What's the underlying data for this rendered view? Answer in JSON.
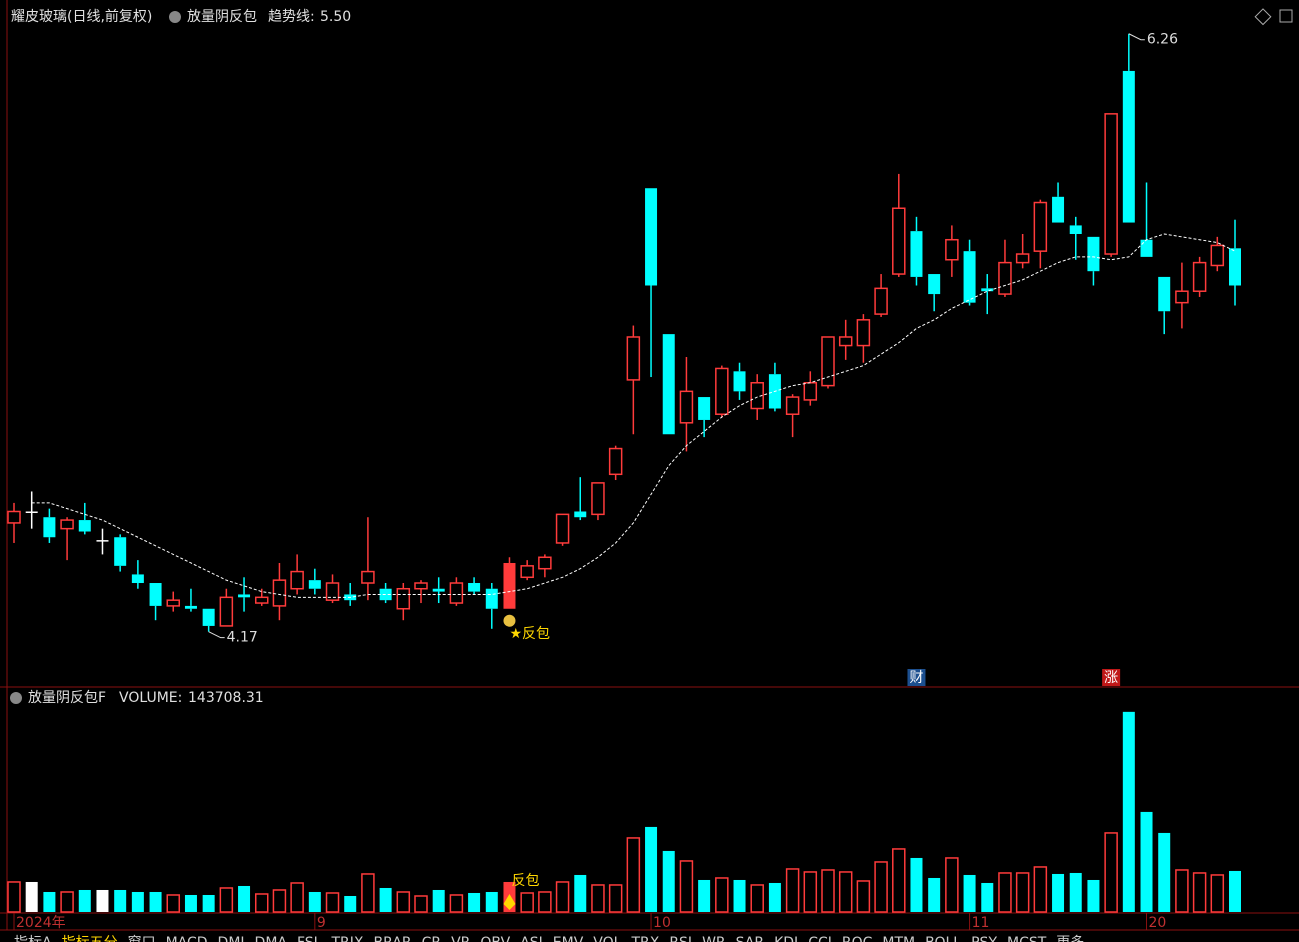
{
  "chart_data": {
    "type": "candlestick",
    "title": "耀皮玻璃(日线,前复权)",
    "indicator": "放量阴反包",
    "trend_label": "趋势线:",
    "trend_value_label": "5.50",
    "signal_label": "★反包",
    "signal_index": 28,
    "volume_title": "放量阴反包F",
    "volume_label": "VOLUME:",
    "volume_signal_label": "反包",
    "categories": [
      "2024年",
      null,
      null,
      null,
      null,
      null,
      null,
      null,
      null,
      null,
      null,
      null,
      null,
      null,
      null,
      null,
      null,
      "9",
      null,
      null,
      null,
      null,
      null,
      null,
      null,
      null,
      null,
      null,
      null,
      null,
      null,
      null,
      null,
      null,
      null,
      null,
      "10",
      null,
      null,
      null,
      null,
      null,
      null,
      null,
      null,
      null,
      null,
      null,
      null,
      null,
      null,
      null,
      null,
      null,
      "11",
      null,
      null,
      null,
      null,
      null,
      null,
      null,
      null,
      null,
      "20",
      null,
      null,
      null,
      null,
      null
    ],
    "open": [
      4.55,
      4.59,
      4.57,
      4.53,
      4.56,
      4.49,
      4.5,
      4.37,
      4.34,
      4.26,
      4.26,
      4.25,
      4.19,
      4.3,
      4.27,
      4.26,
      4.32,
      4.35,
      4.28,
      4.3,
      4.34,
      4.32,
      4.25,
      4.32,
      4.32,
      4.27,
      4.34,
      4.32,
      4.25,
      4.36,
      4.39,
      4.48,
      4.59,
      4.58,
      4.72,
      5.05,
      5.72,
      5.21,
      4.9,
      4.99,
      4.93,
      5.08,
      4.95,
      5.07,
      4.93,
      4.98,
      5.03,
      5.17,
      5.17,
      5.28,
      5.42,
      5.57,
      5.42,
      5.47,
      5.5,
      5.37,
      5.35,
      5.46,
      5.5,
      5.69,
      5.59,
      5.55,
      5.49,
      6.13,
      5.54,
      5.41,
      5.32,
      5.36,
      5.45,
      5.51
    ],
    "high": [
      4.62,
      4.66,
      4.6,
      4.57,
      4.62,
      4.53,
      4.51,
      4.42,
      4.34,
      4.31,
      4.32,
      4.25,
      4.32,
      4.36,
      4.32,
      4.41,
      4.44,
      4.39,
      4.37,
      4.34,
      4.57,
      4.34,
      4.34,
      4.35,
      4.36,
      4.36,
      4.36,
      4.34,
      4.43,
      4.42,
      4.44,
      4.58,
      4.71,
      4.69,
      4.82,
      5.24,
      5.72,
      5.21,
      5.13,
      4.99,
      5.1,
      5.11,
      5.07,
      5.11,
      5.0,
      5.08,
      5.2,
      5.26,
      5.28,
      5.42,
      5.77,
      5.62,
      5.42,
      5.59,
      5.54,
      5.42,
      5.54,
      5.56,
      5.68,
      5.74,
      5.62,
      5.55,
      5.98,
      6.26,
      5.74,
      5.41,
      5.46,
      5.48,
      5.55,
      5.61
    ],
    "low": [
      4.48,
      4.53,
      4.48,
      4.42,
      4.51,
      4.44,
      4.38,
      4.32,
      4.21,
      4.24,
      4.24,
      4.17,
      4.19,
      4.24,
      4.26,
      4.21,
      4.3,
      4.3,
      4.27,
      4.26,
      4.28,
      4.27,
      4.21,
      4.27,
      4.27,
      4.26,
      4.3,
      4.18,
      4.25,
      4.35,
      4.36,
      4.47,
      4.56,
      4.56,
      4.7,
      4.86,
      5.06,
      4.86,
      4.8,
      4.85,
      4.92,
      4.98,
      4.91,
      4.94,
      4.85,
      4.96,
      5.02,
      5.12,
      5.11,
      5.27,
      5.41,
      5.38,
      5.29,
      5.41,
      5.31,
      5.28,
      5.34,
      5.44,
      5.44,
      5.6,
      5.47,
      5.38,
      5.48,
      5.6,
      5.48,
      5.21,
      5.23,
      5.34,
      5.43,
      5.31
    ],
    "close": [
      4.59,
      4.59,
      4.5,
      4.56,
      4.52,
      4.49,
      4.4,
      4.34,
      4.26,
      4.28,
      4.25,
      4.19,
      4.29,
      4.29,
      4.29,
      4.35,
      4.38,
      4.32,
      4.34,
      4.28,
      4.38,
      4.28,
      4.32,
      4.34,
      4.31,
      4.34,
      4.31,
      4.25,
      4.41,
      4.4,
      4.43,
      4.58,
      4.57,
      4.69,
      4.81,
      5.2,
      5.38,
      4.86,
      5.01,
      4.91,
      5.09,
      5.01,
      5.04,
      4.95,
      4.99,
      5.04,
      5.2,
      5.2,
      5.26,
      5.37,
      5.65,
      5.41,
      5.35,
      5.54,
      5.32,
      5.36,
      5.46,
      5.49,
      5.67,
      5.6,
      5.56,
      5.43,
      5.98,
      5.6,
      5.48,
      5.29,
      5.36,
      5.46,
      5.52,
      5.38
    ],
    "trend": [
      null,
      4.62,
      4.62,
      4.6,
      4.58,
      4.56,
      4.53,
      4.5,
      4.47,
      4.44,
      4.41,
      4.38,
      4.35,
      4.33,
      4.31,
      4.3,
      4.29,
      4.29,
      4.29,
      4.29,
      4.3,
      4.3,
      4.3,
      4.3,
      4.3,
      4.3,
      4.3,
      4.3,
      4.31,
      4.32,
      4.34,
      4.36,
      4.39,
      4.43,
      4.48,
      4.55,
      4.65,
      4.75,
      4.82,
      4.87,
      4.92,
      4.96,
      4.99,
      5.01,
      5.03,
      5.04,
      5.06,
      5.08,
      5.1,
      5.14,
      5.18,
      5.23,
      5.26,
      5.3,
      5.33,
      5.36,
      5.38,
      5.4,
      5.43,
      5.46,
      5.48,
      5.48,
      5.47,
      5.48,
      5.54,
      5.56,
      5.55,
      5.54,
      5.53,
      5.5
    ],
    "volume": [
      105150,
      105150,
      70100,
      70100,
      77110,
      77110,
      77110,
      70100,
      70100,
      59585,
      59585,
      59585,
      84120,
      91130,
      63090,
      77110,
      101645,
      70100,
      66595,
      56080,
      133190,
      84120,
      70100,
      56080,
      77110,
      59585,
      66595,
      70100,
      105150,
      66595,
      70100,
      105150,
      129685,
      94635,
      94635,
      259370,
      297925,
      213805,
      178755,
      112160,
      119170,
      112160,
      94635,
      101645,
      150715,
      140200,
      147210,
      140200,
      108655,
      175250,
      220815,
      189270,
      119170,
      189270,
      129685,
      101645,
      136695,
      136695,
      157725,
      133190,
      136695,
      112160,
      276895,
      701000,
      350500,
      276895,
      147210,
      136695,
      129685,
      143708.31
    ],
    "high_mark_index": 63,
    "low_mark_index": 11,
    "markers": [
      {
        "index": 51,
        "label": "财",
        "color": "#1c4f8f"
      },
      {
        "index": 62,
        "label": "涨",
        "color": "#c01818"
      }
    ],
    "ylim": [
      3.98,
      6.35
    ],
    "y2lim": [
      0,
      725000
    ],
    "up_color": "#ff3b3b",
    "down_color": "#00ffff",
    "flat_color": "#ffffff",
    "trend_color": "#ffffff",
    "tabs": [
      "指标A",
      "指标五分",
      "窗口",
      "MACD",
      "DMI",
      "DMA",
      "FSL",
      "TRIX",
      "BRAR",
      "CR",
      "VR",
      "OBV",
      "ASI",
      "EMV",
      "VOL",
      "TRX",
      "RSI",
      "WR",
      "SAR",
      "KDJ",
      "CCI",
      "ROC",
      "MTM",
      "BOLL",
      "PSY",
      "MCST",
      "更多"
    ]
  }
}
